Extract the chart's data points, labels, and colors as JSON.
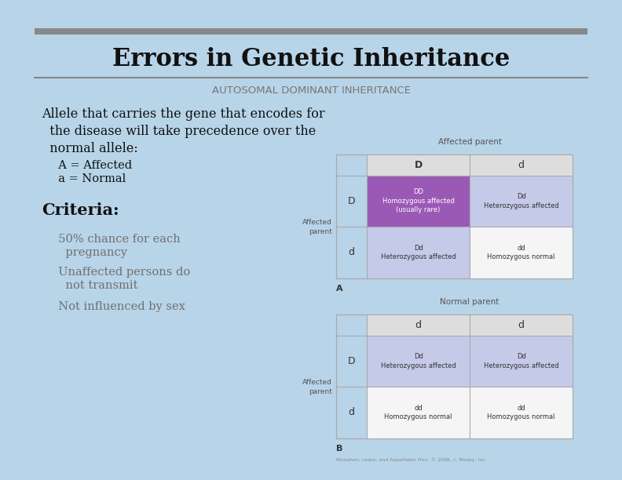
{
  "title": "Errors in Genetic Inheritance",
  "subtitle": "AUTOSOMAL DOMINANT INHERITANCE",
  "body_text_line1": "Allele that carries the gene that encodes for",
  "body_text_line2": "  the disease will take precedence over the",
  "body_text_line3": "  normal allele:",
  "body_text_line4": "  A = Affected",
  "body_text_line5": "  a = Normal",
  "criteria_title": "Criteria:",
  "criteria_line1": "  50% chance for each",
  "criteria_line2": "    pregnancy",
  "criteria_line3": "  Unaffected persons do",
  "criteria_line4": "    not transmit",
  "criteria_line5": "  Not influenced by sex",
  "bg_color": "#b8d4e8",
  "slide_bg": "#f5f5f5",
  "title_color": "#111111",
  "subtitle_color": "#777777",
  "body_color": "#111111",
  "criteria_color": "#707070",
  "table_a_title": "Affected parent",
  "table_b_title": "Normal parent",
  "table_a_col_headers": [
    "D",
    "d"
  ],
  "table_a_row_headers": [
    "D",
    "d"
  ],
  "table_b_col_headers": [
    "d",
    "d"
  ],
  "table_b_row_headers": [
    "D",
    "d"
  ],
  "table_a_cells": [
    [
      "DD\nHomozygous affected\n(usually rare)",
      "Dd\nHeterozygous affected"
    ],
    [
      "Dd\nHeterozygous affected",
      "dd\nHomozygous normal"
    ]
  ],
  "table_b_cells": [
    [
      "Dd\nHeterozygous affected",
      "Dd\nHeterozygous affected"
    ],
    [
      "dd\nHomozygous normal",
      "dd\nHomozygous normal"
    ]
  ],
  "table_a_cell_colors": [
    [
      "#9b59b6",
      "#c5cae9"
    ],
    [
      "#c5cae9",
      "#f5f5f5"
    ]
  ],
  "table_b_cell_colors": [
    [
      "#c5cae9",
      "#c5cae9"
    ],
    [
      "#f5f5f5",
      "#f5f5f5"
    ]
  ],
  "table_a_cell_text_colors": [
    [
      "#ffffff",
      "#333333"
    ],
    [
      "#333333",
      "#333333"
    ]
  ],
  "table_b_cell_text_colors": [
    [
      "#333333",
      "#333333"
    ],
    [
      "#333333",
      "#333333"
    ]
  ],
  "label_a": "A",
  "label_b": "B",
  "affected_parent_label": "Affected\nparent",
  "footer": "Monahan, Lewis, and Asperheim Hirn. © 2008, c: Mosby, Inc."
}
